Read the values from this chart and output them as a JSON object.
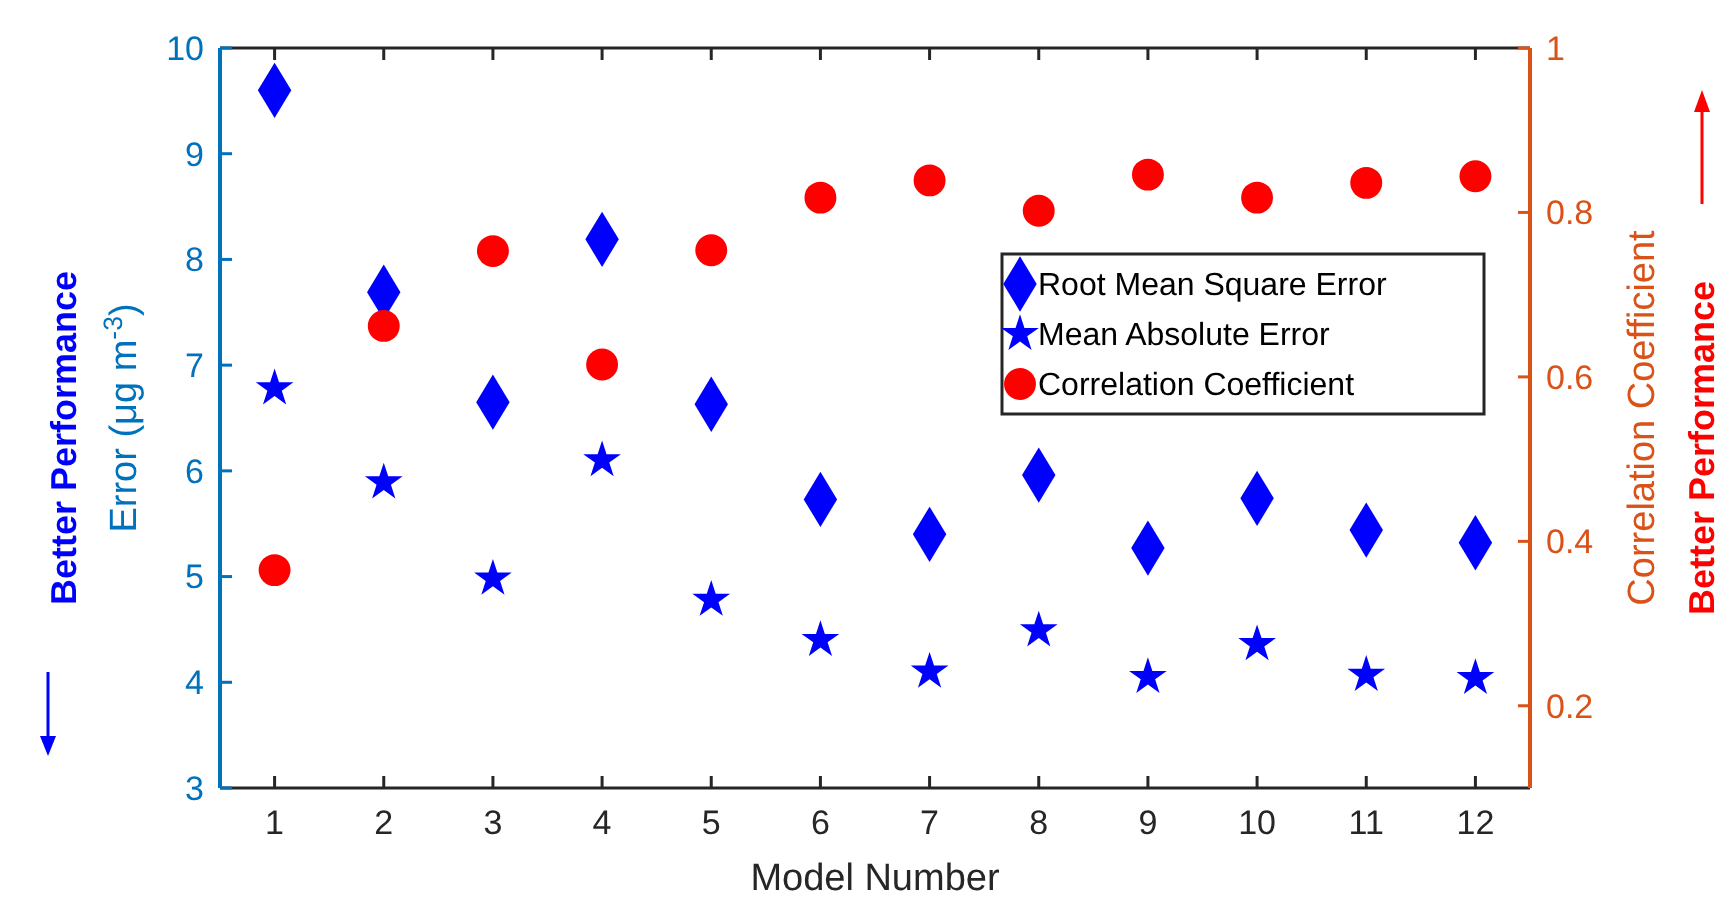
{
  "chart_data": {
    "type": "scatter",
    "xlabel": "Model Number",
    "ylabel": "Error (μg m$^{-3}$)",
    "y2label": "Correlation Coefficient",
    "x": [
      1,
      2,
      3,
      4,
      5,
      6,
      7,
      8,
      9,
      10,
      11,
      12
    ],
    "xlim": [
      0.5,
      12.5
    ],
    "xticks": [
      1,
      2,
      3,
      4,
      5,
      6,
      7,
      8,
      9,
      10,
      11,
      12
    ],
    "ylim": [
      3,
      10
    ],
    "yticks": [
      3,
      4,
      5,
      6,
      7,
      8,
      9,
      10
    ],
    "y2lim": [
      0.1,
      1
    ],
    "y2ticks": [
      0.2,
      0.4,
      0.6,
      0.8,
      1
    ],
    "series": [
      {
        "name": "Root Mean Square Error",
        "color": "#0000ff",
        "marker": "diamond",
        "values": [
          9.6,
          7.69,
          6.65,
          8.19,
          6.63,
          5.73,
          5.4,
          5.96,
          5.27,
          5.74,
          5.44,
          5.32
        ]
      },
      {
        "name": "Mean Absolute Error",
        "color": "#0000ff",
        "marker": "star",
        "values": [
          6.78,
          5.89,
          4.98,
          6.1,
          4.78,
          4.4,
          4.1,
          4.49,
          4.05,
          4.36,
          4.07,
          4.04
        ]
      },
      {
        "name": "Correlation Coefficient",
        "color": "#ff0000",
        "marker": "circle",
        "axis": "y2",
        "values": [
          0.365,
          0.662,
          0.753,
          0.615,
          0.754,
          0.818,
          0.839,
          0.802,
          0.846,
          0.818,
          0.836,
          0.844
        ]
      }
    ],
    "legend": "right",
    "grid": false,
    "annotations": [
      "Better Performance",
      "Better Performance"
    ]
  }
}
